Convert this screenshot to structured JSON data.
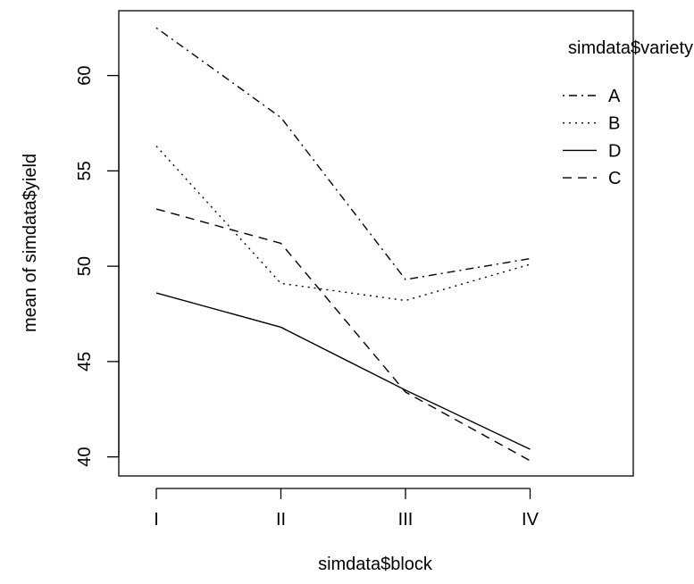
{
  "chart_data": {
    "type": "line",
    "title": "",
    "xlabel": "simdata$block",
    "ylabel": "mean of  simdata$yield",
    "categories": [
      "I",
      "II",
      "III",
      "IV"
    ],
    "yticks": [
      40,
      45,
      50,
      55,
      60
    ],
    "ylim": [
      39,
      63.4
    ],
    "grid": false,
    "legend": {
      "title": "simdata$variety",
      "placement": "top-right"
    },
    "series": [
      {
        "name": "A",
        "values": [
          62.5,
          57.8,
          49.3,
          50.4
        ],
        "dash": "dotdash"
      },
      {
        "name": "B",
        "values": [
          56.3,
          49.1,
          48.2,
          50.1
        ],
        "dash": "dotted"
      },
      {
        "name": "D",
        "values": [
          48.6,
          46.8,
          43.5,
          40.4
        ],
        "dash": "solid"
      },
      {
        "name": "C",
        "values": [
          53.0,
          51.2,
          43.4,
          39.8
        ],
        "dash": "dashed"
      }
    ]
  }
}
